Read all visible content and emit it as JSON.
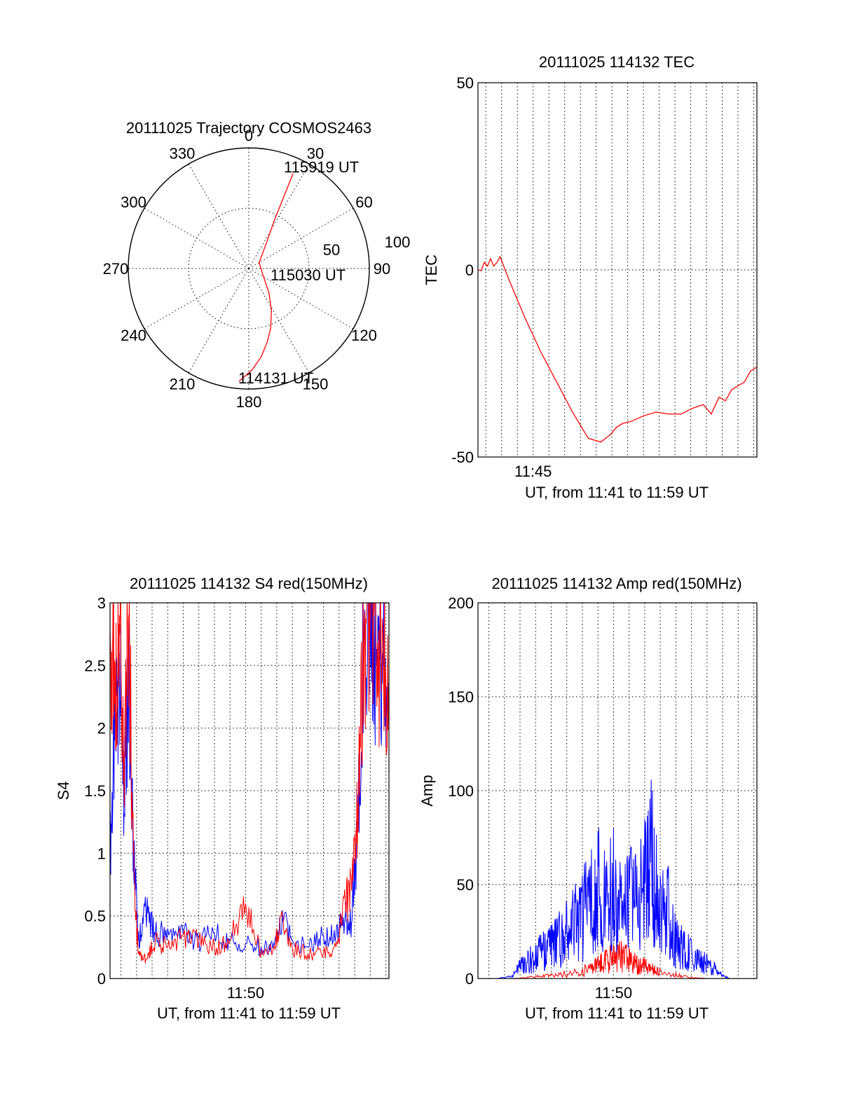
{
  "chart_data": [
    {
      "type": "polar",
      "title": "20111025 Trajectory COSMOS2463",
      "azimuth_labels": [
        "0",
        "30",
        "60",
        "90",
        "120",
        "150",
        "180",
        "210",
        "240",
        "270",
        "300",
        "330"
      ],
      "radial_labels": [
        "50",
        "100"
      ],
      "time_labels": [
        "115919 UT",
        "115030 UT",
        "114131 UT"
      ],
      "trajectory": {
        "color": "#ff0000",
        "azimuth_deg": [
          185,
          178,
          172,
          166,
          160,
          152,
          140,
          110,
          60,
          35,
          28,
          26,
          25
        ],
        "zenith_deg": [
          94,
          84,
          74,
          63,
          53,
          40,
          26,
          12,
          10,
          25,
          45,
          67,
          87
        ]
      }
    },
    {
      "type": "line",
      "title": "20111025 114132 TEC",
      "xlabel": "UT, from 11:41 to 11:59 UT",
      "ylabel": "TEC",
      "xlim": [
        41.5,
        59.2
      ],
      "ylim": [
        -50,
        50
      ],
      "yticks": [
        "-50",
        "0",
        "50"
      ],
      "xticks": [
        {
          "value": 45,
          "label": "11:45"
        }
      ],
      "grid": true,
      "series": [
        {
          "color": "#ff0000",
          "x": [
            41.5,
            41.7,
            41.9,
            42.1,
            42.3,
            42.5,
            42.7,
            42.9,
            43.5,
            44.5,
            45.5,
            46.5,
            47.5,
            48.5,
            49.3,
            49.9,
            50.3,
            50.7,
            51.2,
            52.0,
            52.8,
            53.6,
            54.4,
            55.1,
            55.8,
            56.3,
            56.8,
            57.2,
            57.6,
            58.0,
            58.4,
            58.8,
            59.2
          ],
          "y": [
            0,
            -0.2,
            2,
            1,
            3,
            1,
            2,
            3.5,
            -3,
            -13,
            -22,
            -30,
            -38,
            -45,
            -46,
            -44,
            -42,
            -41,
            -40.5,
            -39,
            -38,
            -38.5,
            -38.5,
            -37,
            -36,
            -38.5,
            -34,
            -35,
            -32,
            -31,
            -30,
            -27,
            -26
          ]
        }
      ]
    },
    {
      "type": "line",
      "title": "20111025 114132 S4 red(150MHz)",
      "xlabel": "UT, from 11:41 to 11:59 UT",
      "ylabel": "S4",
      "xlim": [
        41.3,
        59.2
      ],
      "ylim": [
        0,
        3
      ],
      "yticks": [
        "0",
        "0.5",
        "1",
        "1.5",
        "2",
        "2.5",
        "3"
      ],
      "xticks": [
        {
          "value": 50,
          "label": "11:50"
        }
      ],
      "grid": true,
      "series": [
        {
          "color": "#0000ff",
          "x": [
            41.3,
            41.6,
            41.9,
            42.2,
            42.5,
            42.8,
            43.1,
            43.6,
            44.2,
            45.0,
            46.0,
            47.0,
            48.0,
            49.0,
            50.0,
            51.0,
            51.8,
            52.4,
            53.0,
            54.0,
            55.0,
            55.8,
            56.4,
            56.8,
            57.2,
            57.6,
            58.0,
            58.4,
            58.8,
            59.2
          ],
          "y": [
            1.0,
            1.9,
            2.6,
            1.3,
            2.5,
            1.1,
            0.3,
            0.55,
            0.35,
            0.4,
            0.35,
            0.3,
            0.35,
            0.3,
            0.28,
            0.25,
            0.28,
            0.45,
            0.3,
            0.25,
            0.35,
            0.35,
            0.5,
            0.45,
            1.2,
            2.8,
            2.9,
            2.5,
            2.6,
            2.0
          ]
        },
        {
          "color": "#ff0000",
          "x": [
            41.3,
            41.6,
            41.9,
            42.2,
            42.5,
            42.8,
            43.1,
            43.6,
            44.2,
            45.0,
            46.0,
            47.0,
            48.0,
            49.0,
            50.0,
            51.0,
            51.8,
            52.4,
            53.0,
            54.0,
            55.0,
            55.8,
            56.4,
            56.8,
            57.2,
            57.6,
            58.0,
            58.4,
            58.8,
            59.2
          ],
          "y": [
            2.8,
            2.2,
            2.9,
            1.5,
            2.9,
            1.0,
            0.2,
            0.15,
            0.3,
            0.25,
            0.35,
            0.3,
            0.25,
            0.3,
            0.6,
            0.2,
            0.25,
            0.5,
            0.25,
            0.2,
            0.2,
            0.25,
            0.6,
            0.7,
            1.4,
            2.6,
            2.9,
            2.4,
            2.8,
            2.2
          ]
        }
      ]
    },
    {
      "type": "line",
      "title": "20111025 114132 Amp red(150MHz)",
      "xlabel": "UT, from 11:41 to 11:59 UT",
      "ylabel": "Amp",
      "xlim": [
        41.3,
        59.2
      ],
      "ylim": [
        0,
        200
      ],
      "yticks": [
        "0",
        "50",
        "100",
        "150",
        "200"
      ],
      "xticks": [
        {
          "value": 50,
          "label": "11:50"
        }
      ],
      "grid": true,
      "series": [
        {
          "color": "#0000ff",
          "x": [
            41.3,
            42.5,
            43.5,
            44.0,
            44.5,
            45.0,
            45.5,
            46.0,
            46.5,
            47.0,
            47.5,
            48.0,
            48.5,
            49.0,
            49.5,
            50.0,
            50.5,
            51.0,
            51.5,
            52.0,
            52.5,
            53.0,
            53.5,
            54.0,
            54.5,
            55.0,
            55.5,
            56.0,
            56.5,
            57.0,
            57.5,
            58.5,
            59.2
          ],
          "y": [
            0,
            0,
            2,
            10,
            15,
            18,
            25,
            28,
            33,
            38,
            45,
            55,
            60,
            78,
            60,
            80,
            55,
            65,
            60,
            85,
            100,
            55,
            60,
            30,
            25,
            20,
            15,
            12,
            8,
            2,
            0,
            0,
            0
          ]
        },
        {
          "color": "#ff0000",
          "x": [
            41.3,
            43.5,
            44.5,
            45.5,
            46.5,
            47.5,
            48.5,
            49.0,
            49.5,
            50.0,
            50.5,
            51.0,
            51.5,
            52.0,
            52.5,
            53.0,
            54.0,
            55.0,
            56.0,
            59.2
          ],
          "y": [
            0,
            0,
            1,
            2,
            3,
            5,
            8,
            12,
            15,
            18,
            20,
            16,
            12,
            10,
            8,
            5,
            3,
            1,
            0,
            0
          ]
        }
      ]
    }
  ]
}
